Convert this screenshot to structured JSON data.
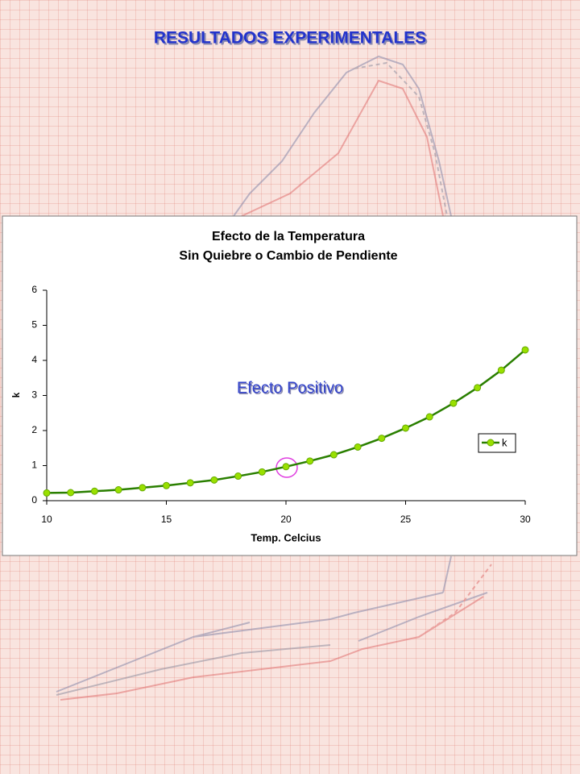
{
  "slide_title": "RESULTADOS EXPERIMENTALES",
  "chart_data": {
    "type": "line",
    "title": "Efecto de la Temperatura",
    "subtitle": "Sin Quiebre o Cambio de Pendiente",
    "x_label": "Temp. Celcius",
    "y_label": "k",
    "annotation": "Efecto Positivo",
    "x": [
      10,
      11,
      12,
      13,
      14,
      15,
      16,
      17,
      18,
      19,
      20,
      21,
      22,
      23,
      24,
      25,
      26,
      27,
      28,
      29,
      30
    ],
    "series": [
      {
        "name": "k",
        "color": "#2a7f00",
        "marker_color": "#99e000",
        "values": [
          0.22,
          0.23,
          0.27,
          0.31,
          0.37,
          0.43,
          0.51,
          0.59,
          0.7,
          0.82,
          0.97,
          1.13,
          1.31,
          1.53,
          1.78,
          2.07,
          2.39,
          2.78,
          3.22,
          3.72,
          4.3
        ]
      }
    ],
    "xlim": [
      10,
      30
    ],
    "xticks": [
      10,
      15,
      20,
      25,
      30
    ],
    "ylim": [
      0,
      6
    ],
    "yticks": [
      0,
      1,
      2,
      3,
      4,
      5,
      6
    ],
    "grid": false,
    "legend": "right"
  }
}
